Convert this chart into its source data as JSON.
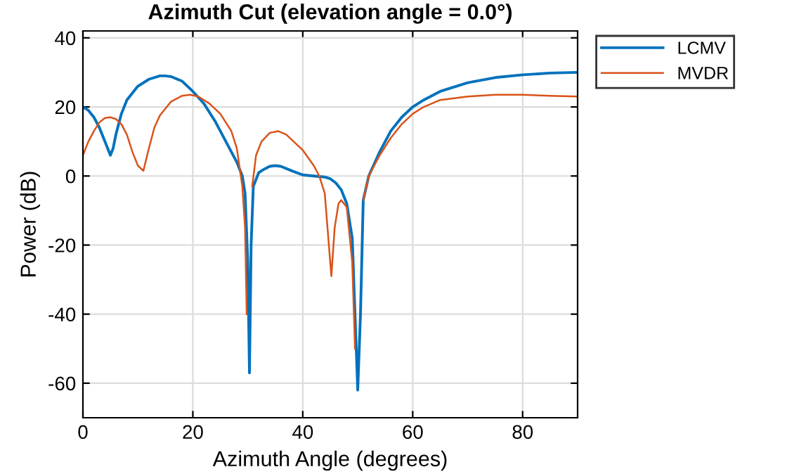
{
  "chart_data": {
    "type": "line",
    "title": "Azimuth Cut (elevation angle = 0.0°)",
    "xlabel": "Azimuth Angle (degrees)",
    "ylabel": "Power (dB)",
    "series": [
      {
        "name": "LCMV",
        "color": "#0072bd",
        "x": [
          0,
          1,
          2,
          3,
          4,
          5,
          5.5,
          6,
          7,
          8,
          10,
          12,
          14,
          15,
          16,
          18,
          20,
          22,
          24,
          26,
          27,
          28,
          29,
          29.5,
          30,
          30.3,
          30.6,
          31,
          32,
          33,
          34,
          35,
          36,
          38,
          40,
          42,
          44,
          45,
          46,
          47,
          48,
          49,
          49.5,
          50,
          50.5,
          51,
          52,
          54,
          56,
          58,
          60,
          62,
          65,
          70,
          75,
          80,
          85,
          90
        ],
        "values": [
          20,
          19,
          17,
          14,
          10,
          6,
          8,
          12,
          18,
          22,
          26,
          28,
          29,
          29,
          28.8,
          27.5,
          24.5,
          21,
          16,
          10,
          7,
          4,
          0,
          -5,
          -25,
          -57,
          -20,
          -3,
          1,
          2,
          2.8,
          3,
          2.8,
          1.5,
          0.3,
          0,
          -0.3,
          -0.8,
          -2,
          -4,
          -8,
          -18,
          -40,
          -62,
          -40,
          -7,
          0,
          7,
          13,
          17,
          20,
          22,
          24.5,
          27,
          28.5,
          29.3,
          29.8,
          30
        ]
      },
      {
        "name": "MVDR",
        "color": "#d95319",
        "x": [
          0,
          1,
          2,
          3,
          4,
          5,
          6,
          7,
          8,
          9,
          10,
          11,
          12,
          13,
          14,
          16,
          18,
          19.5,
          21,
          23,
          25,
          27,
          28,
          29,
          29.5,
          29.8,
          30,
          30.4,
          30.8,
          31.5,
          32.5,
          34,
          35.5,
          37,
          39,
          40,
          42,
          43,
          44,
          44.5,
          45.2,
          45.8,
          46.5,
          47,
          48,
          49,
          49.5,
          50,
          50.5,
          51,
          52,
          54,
          56,
          58,
          60,
          62,
          65,
          70,
          75,
          80,
          85,
          90
        ],
        "values": [
          6,
          10,
          13,
          15.5,
          16.8,
          17,
          16.5,
          15,
          12,
          7,
          3,
          1.5,
          8,
          14,
          17.5,
          21.5,
          23.2,
          23.5,
          23,
          21,
          18,
          13,
          8,
          -3,
          -15,
          -40,
          null,
          null,
          -3,
          6,
          10,
          12.5,
          13,
          12,
          9,
          7.5,
          3,
          0,
          -5,
          -15,
          -29,
          -15,
          -8,
          -7,
          -9,
          -25,
          -50,
          null,
          null,
          -7,
          0,
          6,
          11,
          15,
          18,
          20,
          22,
          23,
          23.5,
          23.5,
          23.2,
          23
        ]
      }
    ],
    "xlim": [
      0,
      90
    ],
    "ylim": [
      -70,
      42
    ],
    "xticks": [
      0,
      20,
      40,
      60,
      80
    ],
    "yticks": [
      -60,
      -40,
      -20,
      0,
      20,
      40
    ],
    "grid": true,
    "legend": "top right"
  }
}
